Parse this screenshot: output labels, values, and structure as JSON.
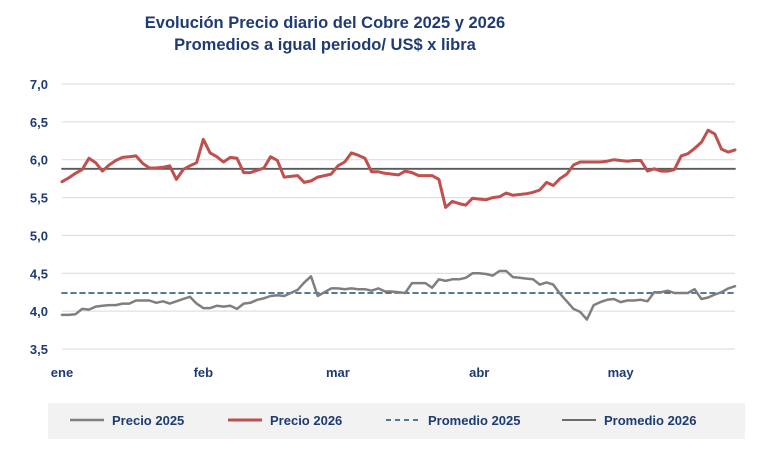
{
  "chart_data": {
    "type": "line",
    "title": "Evolución Precio diario del Cobre 2025 y 2026",
    "subtitle": "Promedios a igual periodo/ US$ x libra",
    "ylim": [
      3.5,
      7.0
    ],
    "yticks": [
      "3,5",
      "4,0",
      "4,5",
      "5,0",
      "5,5",
      "6,0",
      "6,5",
      "7,0"
    ],
    "yticks_values": [
      3.5,
      4.0,
      4.5,
      5.0,
      5.5,
      6.0,
      6.5,
      7.0
    ],
    "xticks": [
      "ene",
      "feb",
      "mar",
      "abr",
      "may"
    ],
    "xticks_index": [
      0,
      21,
      41,
      62,
      83
    ],
    "n_points": 101,
    "grid": "horizontal",
    "legend_position": "bottom",
    "colors": {
      "precio_2025": "#7f7f7f",
      "precio_2026": "#c0504d",
      "promedio_2025": "#1f4e79",
      "promedio_2026": "#595959",
      "grid": "#d9d9d9",
      "legend_bg": "#f2f2f2",
      "text": "#1f3b73"
    },
    "series": [
      {
        "name": "Precio 2025",
        "values": [
          3.95,
          3.95,
          3.96,
          4.03,
          4.02,
          4.06,
          4.07,
          4.08,
          4.08,
          4.1,
          4.1,
          4.14,
          4.14,
          4.14,
          4.11,
          4.13,
          4.1,
          4.13,
          4.16,
          4.19,
          4.1,
          4.04,
          4.04,
          4.07,
          4.06,
          4.07,
          4.03,
          4.1,
          4.11,
          4.15,
          4.17,
          4.2,
          4.21,
          4.2,
          4.24,
          4.28,
          4.38,
          4.46,
          4.2,
          4.25,
          4.3,
          4.3,
          4.29,
          4.3,
          4.29,
          4.29,
          4.27,
          4.3,
          4.26,
          4.26,
          4.25,
          4.24,
          4.37,
          4.37,
          4.37,
          4.31,
          4.42,
          4.4,
          4.42,
          4.42,
          4.44,
          4.5,
          4.5,
          4.49,
          4.47,
          4.53,
          4.53,
          4.45,
          4.44,
          4.43,
          4.42,
          4.35,
          4.38,
          4.35,
          4.23,
          4.13,
          4.03,
          3.99,
          3.89,
          4.08,
          4.12,
          4.15,
          4.16,
          4.12,
          4.14,
          4.14,
          4.15,
          4.13,
          4.25,
          4.25,
          4.27,
          4.24,
          4.24,
          4.24,
          4.29,
          4.16,
          4.18,
          4.22,
          4.25,
          4.3,
          4.33
        ]
      },
      {
        "name": "Precio 2026",
        "values": [
          5.71,
          5.76,
          5.82,
          5.87,
          6.02,
          5.96,
          5.85,
          5.93,
          5.99,
          6.03,
          6.04,
          6.05,
          5.95,
          5.89,
          5.89,
          5.9,
          5.92,
          5.74,
          5.87,
          5.92,
          5.96,
          6.27,
          6.09,
          6.04,
          5.97,
          6.03,
          6.02,
          5.83,
          5.83,
          5.86,
          5.89,
          6.04,
          5.99,
          5.77,
          5.78,
          5.79,
          5.7,
          5.72,
          5.77,
          5.79,
          5.81,
          5.92,
          5.97,
          6.09,
          6.06,
          6.02,
          5.84,
          5.84,
          5.82,
          5.81,
          5.8,
          5.85,
          5.83,
          5.79,
          5.79,
          5.79,
          5.74,
          5.37,
          5.45,
          5.42,
          5.4,
          5.49,
          5.48,
          5.47,
          5.5,
          5.51,
          5.56,
          5.53,
          5.54,
          5.55,
          5.57,
          5.6,
          5.7,
          5.66,
          5.75,
          5.81,
          5.93,
          5.97,
          5.97,
          5.97,
          5.97,
          5.98,
          6.0,
          5.99,
          5.98,
          5.99,
          5.99,
          5.85,
          5.88,
          5.85,
          5.85,
          5.87,
          6.05,
          6.08,
          6.15,
          6.23,
          6.39,
          6.34,
          6.14,
          6.1,
          6.13
        ]
      },
      {
        "name": "Promedio 2025",
        "values": [
          4.24,
          4.24
        ]
      },
      {
        "name": "Promedio 2026",
        "values": [
          5.88,
          5.88
        ]
      }
    ]
  },
  "legend": {
    "items": [
      {
        "label": "Precio 2025"
      },
      {
        "label": "Precio 2026"
      },
      {
        "label": "Promedio 2025"
      },
      {
        "label": "Promedio 2026"
      }
    ]
  }
}
